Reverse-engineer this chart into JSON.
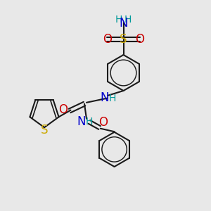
{
  "bg_color": "#e8e8e8",
  "bond_color": "#1a1a1a",
  "bond_width": 1.5,
  "colors": {
    "C": "#1a1a1a",
    "N": "#0000cc",
    "O": "#cc0000",
    "S": "#ccaa00",
    "H": "#009999"
  }
}
